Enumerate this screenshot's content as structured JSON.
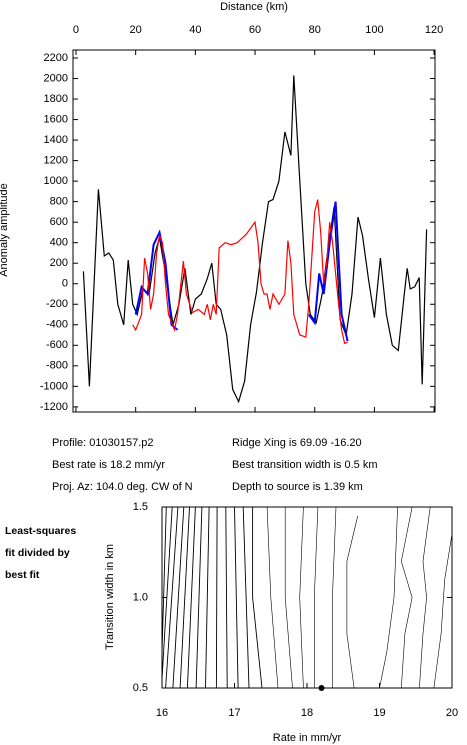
{
  "chart_data": [
    {
      "type": "line",
      "x_label": "Distance (km)",
      "y_label": "Anomaly amplitude",
      "xlim": [
        -1,
        120.3
      ],
      "ylim": [
        -1250,
        2278
      ],
      "xticks": [
        0,
        20,
        40,
        60,
        80,
        100,
        120
      ],
      "yticks": [
        2200,
        2000,
        1800,
        1600,
        1400,
        1200,
        1000,
        800,
        600,
        400,
        200,
        0,
        -200,
        -400,
        -600,
        -800,
        -1000,
        -1200
      ],
      "series": [
        {
          "color": "#000000",
          "x": [
            2.5,
            4.5,
            7.5,
            9.5,
            11,
            12.5,
            14,
            16,
            17.5,
            19,
            20.5,
            22.5,
            24.5,
            26.5,
            28,
            30,
            32.5,
            34.5,
            36.5,
            38.5,
            40,
            42,
            44,
            45.5,
            47,
            48.5,
            50.5,
            52.5,
            54.5,
            56.5,
            58.5,
            60.5,
            62.5,
            64.5,
            66,
            68,
            70,
            72,
            73,
            75,
            77,
            78.5,
            80.5,
            82.5,
            84.5,
            86.5,
            88.5,
            90.5,
            92.5,
            94.5,
            96,
            98,
            100,
            102,
            104,
            106,
            108,
            110,
            111,
            112,
            113.5,
            115,
            116,
            117.5
          ],
          "values": [
            120,
            -1000,
            920,
            270,
            300,
            230,
            -200,
            -400,
            230,
            -200,
            -300,
            -50,
            -100,
            300,
            450,
            100,
            -400,
            -200,
            150,
            -300,
            -150,
            -100,
            50,
            200,
            -200,
            -250,
            -500,
            -1030,
            -1150,
            -950,
            -400,
            -80,
            400,
            800,
            820,
            1000,
            1480,
            1250,
            2030,
            1000,
            0,
            -300,
            -380,
            -100,
            350,
            750,
            -350,
            -500,
            -100,
            650,
            470,
            50,
            -330,
            250,
            -300,
            -600,
            -650,
            -100,
            150,
            -50,
            -30,
            60,
            -980,
            530
          ]
        },
        {
          "color": "#0000ff",
          "x": [
            20,
            22,
            24,
            26,
            28,
            30,
            32,
            34,
            50,
            78,
            80,
            81.5,
            83,
            85,
            87,
            89,
            91
          ],
          "values": [
            -300,
            -30,
            -100,
            380,
            500,
            200,
            -400,
            -450,
            null,
            -300,
            -380,
            100,
            -100,
            400,
            800,
            -300,
            -560
          ]
        },
        {
          "color": "#ff0000",
          "x": [
            19,
            20,
            22,
            23,
            24,
            25,
            26,
            27,
            28,
            29,
            30,
            31,
            33,
            34,
            36,
            37,
            39,
            41,
            43,
            44,
            45,
            46,
            47,
            48,
            50,
            52,
            54,
            57,
            60,
            61,
            62,
            63,
            64,
            65,
            66,
            68,
            70,
            71,
            72,
            73,
            75,
            77,
            78,
            80,
            81,
            82,
            83,
            84,
            85,
            86,
            87,
            88,
            89,
            90,
            91
          ],
          "values": [
            -400,
            -450,
            -300,
            250,
            100,
            -250,
            -100,
            300,
            470,
            400,
            0,
            -300,
            -450,
            -300,
            220,
            -100,
            -280,
            -250,
            -300,
            -200,
            -350,
            -200,
            -300,
            350,
            400,
            380,
            400,
            480,
            600,
            400,
            0,
            -100,
            -100,
            -250,
            -100,
            -200,
            -100,
            420,
            200,
            -300,
            -500,
            -520,
            -200,
            700,
            820,
            500,
            0,
            200,
            600,
            400,
            100,
            -200,
            -450,
            -580,
            -570
          ]
        }
      ],
      "annotations": [
        "Profile: 01030157.p2",
        "Best rate is 18.2 mm/yr",
        "Proj. Az: 104.0 deg. CW of N",
        "Ridge Xing is 69.09 -16.20",
        "Best transition width is 0.5 km",
        "Depth to source is   1.39 km"
      ]
    },
    {
      "type": "contour",
      "title_lines": [
        "Least-squares",
        "fit divided by",
        "best fit"
      ],
      "x_label": "Rate in mm/yr",
      "y_label": "Transition width in km",
      "xlim": [
        16,
        20
      ],
      "ylim": [
        0.5,
        1.5
      ],
      "xticks": [
        16,
        17,
        18,
        19,
        20
      ],
      "yticks": [
        0.5,
        {
          "value": 1.0,
          "label": "1.0"
        },
        1.5
      ],
      "color": "#000000",
      "contours": [
        {
          "x": [
            16.0,
            16.06
          ],
          "y": [
            0.7,
            1.5
          ]
        },
        {
          "x": [
            16.0,
            16.14
          ],
          "y": [
            0.55,
            1.5
          ]
        },
        {
          "x": [
            16.05,
            16.22
          ],
          "y": [
            0.5,
            1.5
          ]
        },
        {
          "x": [
            16.15,
            16.3
          ],
          "y": [
            0.5,
            1.5
          ]
        },
        {
          "x": [
            16.25,
            16.38
          ],
          "y": [
            0.5,
            1.5
          ]
        },
        {
          "x": [
            16.35,
            16.46
          ],
          "y": [
            0.5,
            1.5
          ]
        },
        {
          "x": [
            16.47,
            16.55
          ],
          "y": [
            0.5,
            1.5
          ]
        },
        {
          "x": [
            16.6,
            16.65
          ],
          "y": [
            0.5,
            1.5
          ]
        },
        {
          "x": [
            16.75,
            16.76
          ],
          "y": [
            0.5,
            1.5
          ]
        },
        {
          "x": [
            16.9,
            16.88
          ],
          "y": [
            0.5,
            1.5
          ]
        },
        {
          "x": [
            17.05,
            17.0
          ],
          "y": [
            0.5,
            1.5
          ]
        },
        {
          "x": [
            17.2,
            17.12
          ],
          "y": [
            0.5,
            1.5
          ]
        },
        {
          "x": [
            17.38,
            17.25,
            17.25
          ],
          "y": [
            0.5,
            1.0,
            1.5
          ]
        },
        {
          "x": [
            17.6,
            17.5,
            17.45
          ],
          "y": [
            0.5,
            1.0,
            1.5
          ]
        },
        {
          "x": [
            17.8,
            17.7,
            17.7
          ],
          "y": [
            0.5,
            1.0,
            1.5
          ]
        },
        {
          "x": [
            17.95,
            17.9,
            17.95
          ],
          "y": [
            0.5,
            1.0,
            1.5
          ]
        },
        {
          "x": [
            18.1,
            18.1,
            18.15
          ],
          "y": [
            0.5,
            1.0,
            1.5
          ]
        },
        {
          "x": [
            18.35,
            18.35,
            18.4
          ],
          "y": [
            0.5,
            1.0,
            1.5
          ]
        },
        {
          "x": [
            18.65,
            18.55,
            18.55,
            18.7
          ],
          "y": [
            0.5,
            0.8,
            1.2,
            1.45
          ]
        },
        {
          "x": [
            19.0,
            19.1,
            19.2,
            19.25
          ],
          "y": [
            0.5,
            0.7,
            1.0,
            1.5
          ]
        },
        {
          "x": [
            19.3,
            19.35,
            19.45,
            19.3,
            19.45
          ],
          "y": [
            0.5,
            0.8,
            1.0,
            1.2,
            1.5
          ]
        },
        {
          "x": [
            19.55,
            19.6,
            19.65,
            19.6,
            19.7
          ],
          "y": [
            0.5,
            0.8,
            1.0,
            1.2,
            1.5
          ]
        },
        {
          "x": [
            19.75,
            19.85,
            19.9,
            20.0
          ],
          "y": [
            0.5,
            0.8,
            1.1,
            1.35
          ]
        }
      ],
      "best_fit": {
        "x": 18.2,
        "y": 0.5
      }
    }
  ]
}
